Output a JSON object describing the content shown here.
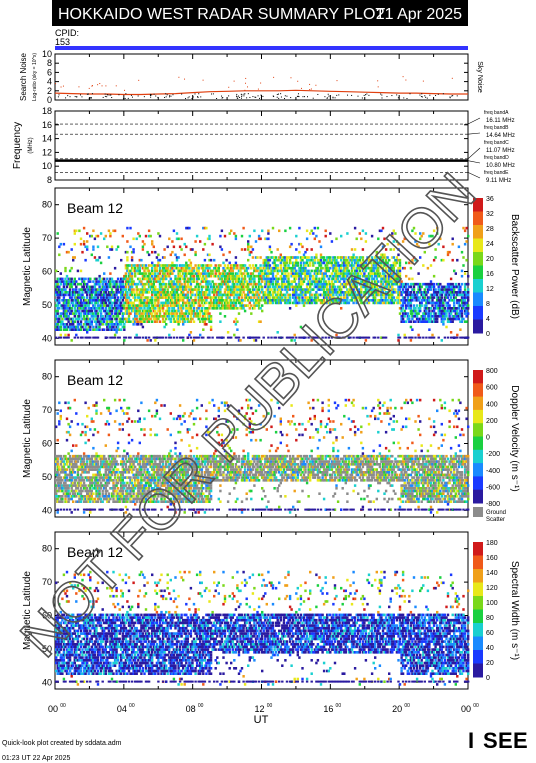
{
  "header": {
    "title": "HOKKAIDO WEST RADAR SUMMARY PLOT",
    "date": "21 Apr 2025",
    "cpid_label": "CPID:",
    "cpid_value": "153",
    "cpid_color": "#3333ff"
  },
  "watermark": "NOT FOR PUBLICATION",
  "footer": {
    "credit": "Quick-look plot created by sddata.adm",
    "timestamp": "01:23 UT 22 Apr 2025",
    "logo_text": "ISEE",
    "logo_colors": [
      "#2a8a6a",
      "#e88a1a",
      "#2a6ab0",
      "#3aa040"
    ]
  },
  "x_axis": {
    "label": "UT",
    "tick_labels": [
      "00",
      "04",
      "08",
      "12",
      "16",
      "20",
      "00"
    ],
    "tick_superscript": "00",
    "range_hours": [
      0,
      24
    ]
  },
  "chart_data": [
    {
      "type": "line",
      "name": "search-noise",
      "ylabel": "Search Noise",
      "ylabel_sub": "Log-ratio (sky = 10^x)",
      "ylim": [
        0,
        10
      ],
      "yticks": [
        0,
        2,
        4,
        6,
        8,
        10
      ],
      "right_label": "Sky Noise",
      "series": [
        {
          "name": "Sky Noise",
          "color": "#e04010",
          "x": [
            0,
            1,
            2,
            3,
            4,
            5,
            6,
            7,
            8,
            9,
            10,
            11,
            12,
            13,
            14,
            15,
            16,
            17,
            18,
            19,
            20,
            21,
            22,
            23,
            24
          ],
          "values": [
            1.5,
            1.4,
            1.3,
            1.3,
            1.2,
            1.2,
            1.3,
            1.4,
            1.6,
            1.8,
            1.9,
            2.0,
            2.0,
            2.0,
            2.1,
            2.0,
            1.9,
            1.8,
            1.7,
            1.6,
            1.5,
            1.5,
            1.4,
            1.3,
            1.3
          ]
        }
      ]
    },
    {
      "type": "line",
      "name": "frequency",
      "ylabel": "Frequency",
      "ylabel_sub": "(MHz)",
      "ylim": [
        8,
        18
      ],
      "yticks": [
        8,
        10,
        12,
        14,
        16,
        18
      ],
      "bands": [
        {
          "name": "freq bandA",
          "label": "16.11 MHz",
          "value": 16.11
        },
        {
          "name": "freq bandB",
          "label": "14.64 MHz",
          "value": 14.64
        },
        {
          "name": "freq bandC",
          "label": "11.07 MHz",
          "value": 11.07
        },
        {
          "name": "freq bandD",
          "label": "10.80 MHz",
          "value": 10.8
        },
        {
          "name": "freq bandE",
          "label": "9.11 MHz",
          "value": 9.11
        }
      ],
      "series": [
        {
          "name": "Operating frequency",
          "color": "#000000",
          "x": [
            0,
            24
          ],
          "values": [
            10.8,
            10.8
          ]
        }
      ]
    },
    {
      "type": "heatmap",
      "name": "backscatter-power",
      "beam_label": "Beam 12",
      "ylabel": "Magnetic Latitude",
      "ylim": [
        38,
        85
      ],
      "yticks": [
        40,
        50,
        60,
        70,
        80
      ],
      "colorbar": {
        "label": "Backscatter Power (dB)",
        "range": [
          0,
          36
        ],
        "ticks": [
          0,
          4,
          8,
          12,
          16,
          20,
          24,
          28,
          32,
          36
        ],
        "palette": [
          "#2a1aa0",
          "#1a3aff",
          "#1a8aff",
          "#1ad0d0",
          "#1ad040",
          "#7ad81a",
          "#e8e81a",
          "#f0a01a",
          "#f05a1a",
          "#d01a1a"
        ]
      },
      "regions": [
        {
          "hour_start": 0,
          "hour_end": 4,
          "lat_low": 42,
          "lat_high": 58,
          "level": 0.25
        },
        {
          "hour_start": 4,
          "hour_end": 12,
          "lat_low": 44,
          "lat_high": 62,
          "level": 0.55
        },
        {
          "hour_start": 12,
          "hour_end": 20,
          "lat_low": 50,
          "lat_high": 64,
          "level": 0.45
        },
        {
          "hour_start": 20,
          "hour_end": 24,
          "lat_low": 44,
          "lat_high": 56,
          "level": 0.2
        }
      ]
    },
    {
      "type": "heatmap",
      "name": "doppler-velocity",
      "beam_label": "Beam 12",
      "ylabel": "Magnetic Latitude",
      "ylim": [
        38,
        85
      ],
      "yticks": [
        40,
        50,
        60,
        70,
        80
      ],
      "colorbar": {
        "label": "Doppler Velocity (m s⁻¹)",
        "range": [
          -800,
          800
        ],
        "ticks": [
          800,
          600,
          400,
          200,
          0,
          -200,
          -400,
          -600,
          -800
        ],
        "palette": [
          "#d01a1a",
          "#f05a1a",
          "#f0a01a",
          "#e8e81a",
          "#7ad81a",
          "#1ad040",
          "#1ad0d0",
          "#1a8aff",
          "#1a3aff",
          "#2a1aa0"
        ],
        "ground_scatter_label": "Ground Scatter",
        "ground_scatter_color": "#8c8c8c"
      },
      "regions": [
        {
          "hour_start": 0,
          "hour_end": 24,
          "lat_low": 42,
          "lat_high": 56,
          "level": 0.5,
          "ground": true
        }
      ]
    },
    {
      "type": "heatmap",
      "name": "spectral-width",
      "beam_label": "Beam 12",
      "ylabel": "Magnetic Latitude",
      "ylim": [
        38,
        85
      ],
      "yticks": [
        40,
        50,
        60,
        70,
        80
      ],
      "colorbar": {
        "label": "Spectral Width (m s⁻¹)",
        "range": [
          0,
          180
        ],
        "ticks": [
          0,
          20,
          40,
          60,
          80,
          100,
          120,
          140,
          160,
          180
        ],
        "palette": [
          "#2a1aa0",
          "#1a3aff",
          "#1a8aff",
          "#1ad0d0",
          "#1ad040",
          "#7ad81a",
          "#e8e81a",
          "#f0a01a",
          "#f05a1a",
          "#d01a1a"
        ]
      },
      "regions": [
        {
          "hour_start": 0,
          "hour_end": 24,
          "lat_low": 42,
          "lat_high": 60,
          "level": 0.1
        }
      ]
    }
  ]
}
